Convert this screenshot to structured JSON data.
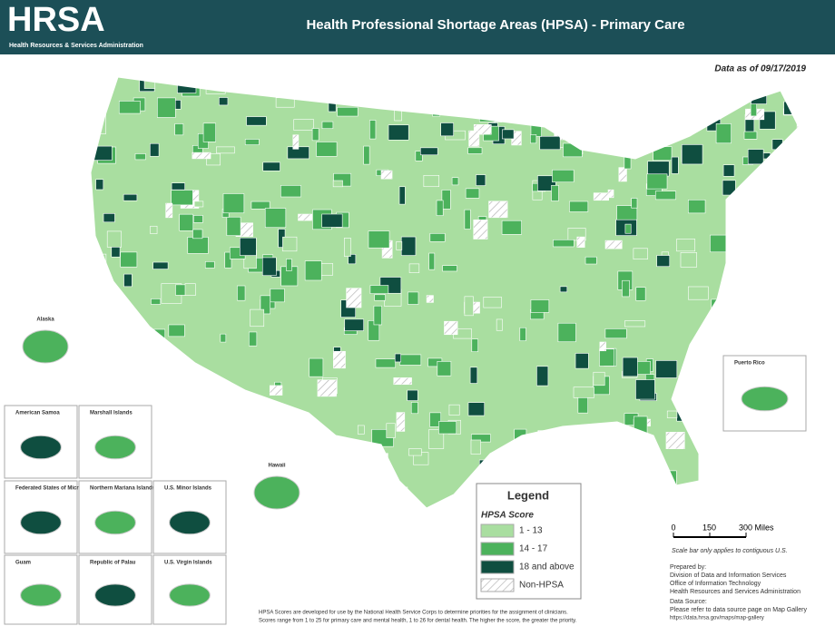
{
  "header": {
    "logo": "HRSA",
    "logo_subtitle": "Health Resources & Services Administration",
    "title": "Health Professional Shortage Areas (HPSA) - Primary Care"
  },
  "date_note": "Data as of 09/17/2019",
  "legend": {
    "title": "Legend",
    "subtitle": "HPSA Score",
    "items": [
      {
        "label": "1 - 13",
        "color": "#a9dea0"
      },
      {
        "label": "14 - 17",
        "color": "#4cb25c"
      },
      {
        "label": "18 and above",
        "color": "#0f4e40"
      },
      {
        "label": "Non-HPSA"
      }
    ]
  },
  "insets": [
    "Alaska",
    "American Samoa",
    "Marshall Islands",
    "Federated States of Micronesia",
    "Northern Mariana Islands",
    "U.S. Minor Islands",
    "Guam",
    "Republic of Palau",
    "U.S. Virgin Islands",
    "Hawaii",
    "Puerto Rico"
  ],
  "scale_bar": {
    "ticks": [
      "0",
      "150",
      "300 Miles"
    ],
    "note": "Scale bar only applies to contiguous U.S."
  },
  "prepared_by": {
    "heading": "Prepared by:",
    "lines": [
      "Division of Data and Information Services",
      "Office of Information Technology",
      "Health Resources and Services Administration"
    ]
  },
  "data_source": {
    "heading": "Data Source:",
    "lines": [
      "Please refer to data source page on Map Gallery",
      "https://data.hrsa.gov/maps/map-gallery"
    ]
  },
  "footnote": [
    "HPSA Scores are developed for use by the National Health Service Corps to determine priorities for the assignment of clinicians.",
    "Scores range from 1 to 25 for primary care and mental health, 1 to 26 for dental health. The higher the score, the greater the priority."
  ]
}
